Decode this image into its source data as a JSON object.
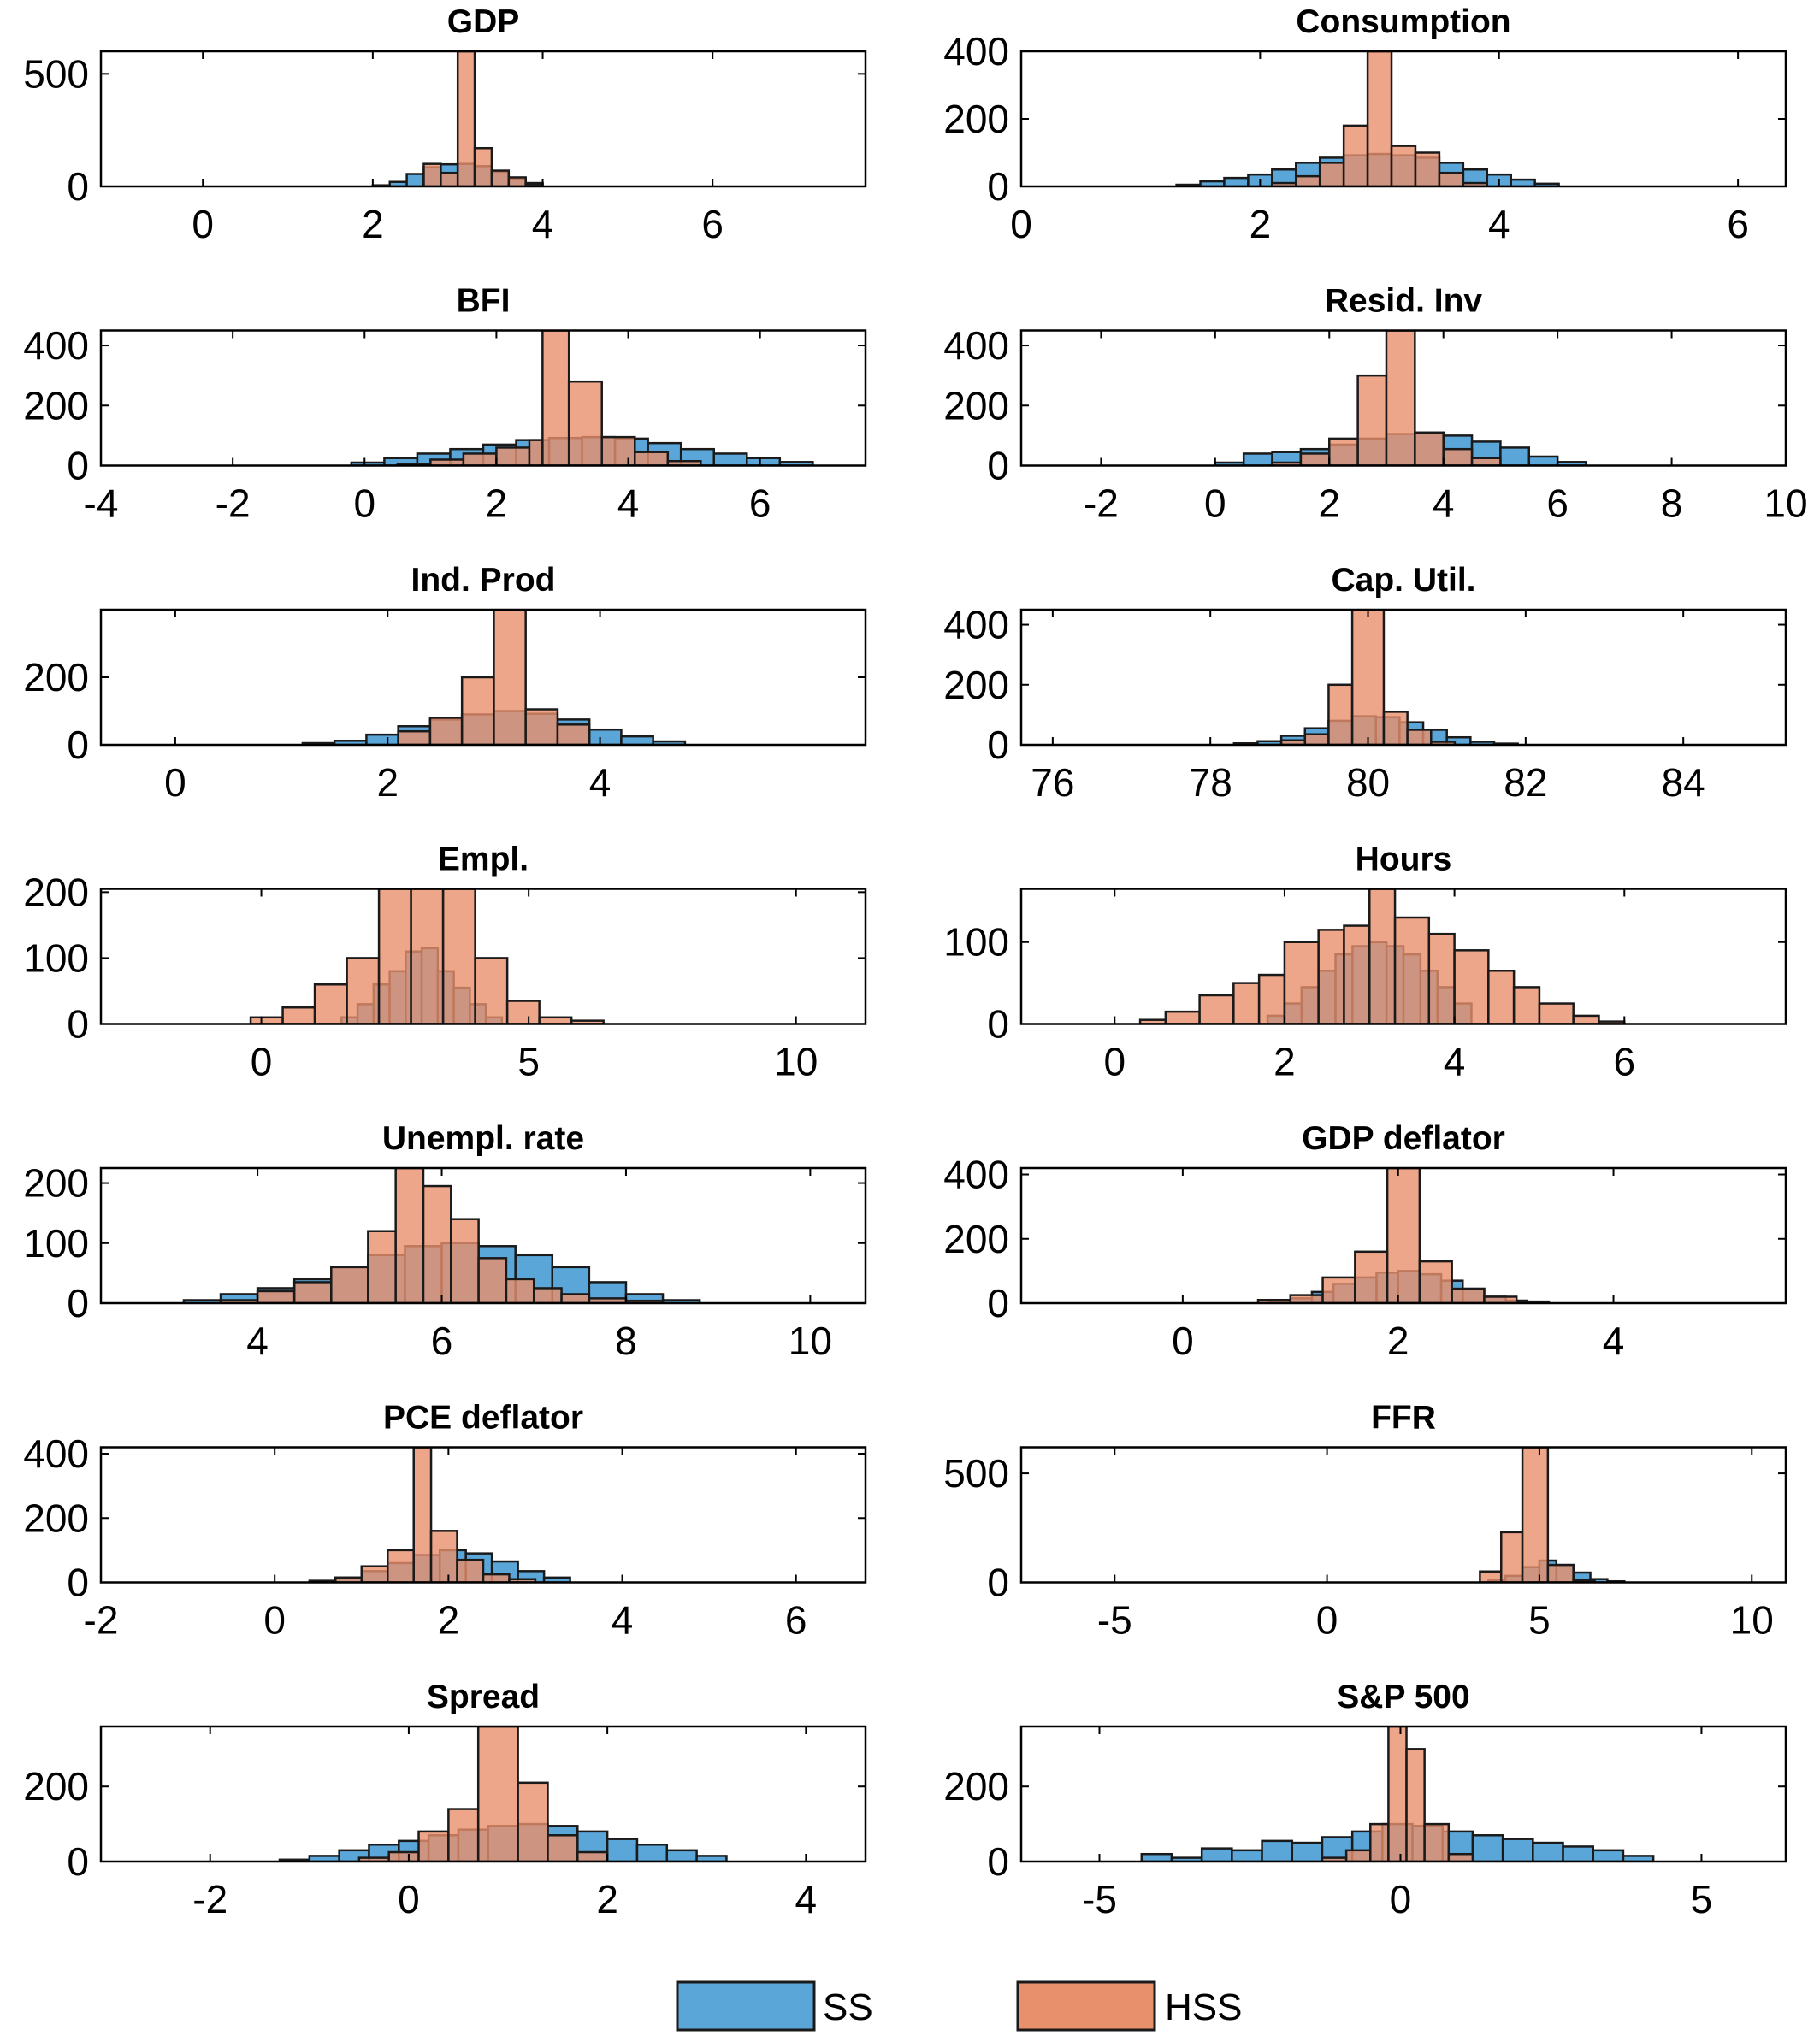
{
  "colors": {
    "ss": "#5aa6d8",
    "hss": "#e8906c",
    "edge": "#1a1a1a",
    "frame": "#000000"
  },
  "legend": {
    "items": [
      {
        "key": "ss",
        "label": "SS"
      },
      {
        "key": "hss",
        "label": "HSS"
      }
    ]
  },
  "chart_data": [
    {
      "type": "bar",
      "title": "GDP",
      "xlim": [
        -1.2,
        7.8
      ],
      "ylim": [
        0,
        600
      ],
      "xticks": [
        0,
        2,
        4,
        6
      ],
      "yticks": [
        0,
        500
      ],
      "xticklabels": [
        "0",
        "2",
        "4",
        "6"
      ],
      "yticklabels": [
        "0",
        "500"
      ],
      "ss": {
        "edges": [
          2.0,
          2.2,
          2.4,
          2.6,
          2.8,
          3.0,
          3.2,
          3.4,
          3.6,
          3.8,
          4.0
        ],
        "counts": [
          5,
          20,
          55,
          85,
          98,
          100,
          90,
          65,
          35,
          15
        ]
      },
      "hss": {
        "edges": [
          2.6,
          2.8,
          3.0,
          3.2,
          3.4,
          3.6,
          3.8,
          4.0
        ],
        "counts": [
          100,
          60,
          600,
          170,
          70,
          40,
          10
        ]
      }
    },
    {
      "type": "bar",
      "title": "Consumption",
      "xlim": [
        0,
        6.4
      ],
      "ylim": [
        0,
        400
      ],
      "xticks": [
        0,
        2,
        4,
        6
      ],
      "yticks": [
        0,
        200,
        400
      ],
      "xticklabels": [
        "0",
        "2",
        "4",
        "6"
      ],
      "yticklabels": [
        "0",
        "200",
        "400"
      ],
      "ss": {
        "edges": [
          1.3,
          1.5,
          1.7,
          1.9,
          2.1,
          2.3,
          2.5,
          2.7,
          2.9,
          3.1,
          3.3,
          3.5,
          3.7,
          3.9,
          4.1,
          4.3,
          4.5
        ],
        "counts": [
          5,
          15,
          25,
          35,
          50,
          70,
          85,
          92,
          96,
          92,
          85,
          70,
          50,
          35,
          20,
          8
        ]
      },
      "hss": {
        "edges": [
          2.1,
          2.3,
          2.5,
          2.7,
          2.9,
          3.1,
          3.3,
          3.5,
          3.7,
          3.9
        ],
        "counts": [
          10,
          30,
          70,
          180,
          400,
          120,
          100,
          40,
          10
        ]
      }
    },
    {
      "type": "bar",
      "title": "BFI",
      "xlim": [
        -4,
        7.6
      ],
      "ylim": [
        0,
        450
      ],
      "xticks": [
        -4,
        -2,
        0,
        2,
        4,
        6
      ],
      "yticks": [
        0,
        200,
        400
      ],
      "xticklabels": [
        "-4",
        "-2",
        "0",
        "2",
        "4",
        "6"
      ],
      "yticklabels": [
        "0",
        "200",
        "400"
      ],
      "ss": {
        "edges": [
          -0.2,
          0.3,
          0.8,
          1.3,
          1.8,
          2.3,
          2.8,
          3.3,
          3.8,
          4.3,
          4.8,
          5.3,
          5.8,
          6.3,
          6.8
        ],
        "counts": [
          10,
          25,
          40,
          55,
          70,
          85,
          92,
          95,
          90,
          75,
          55,
          40,
          25,
          12
        ]
      },
      "hss": {
        "edges": [
          0.5,
          1.0,
          1.5,
          2.0,
          2.5,
          2.7,
          3.1,
          3.6,
          4.1,
          4.6,
          5.1
        ],
        "counts": [
          5,
          20,
          40,
          60,
          85,
          450,
          280,
          95,
          45,
          15
        ]
      }
    },
    {
      "type": "bar",
      "title": "Resid. Inv",
      "xlim": [
        -3.4,
        10
      ],
      "ylim": [
        0,
        450
      ],
      "xticks": [
        -2,
        0,
        2,
        4,
        6,
        8,
        10
      ],
      "yticks": [
        0,
        200,
        400
      ],
      "xticklabels": [
        "-2",
        "0",
        "2",
        "4",
        "6",
        "8",
        "10"
      ],
      "yticklabels": [
        "0",
        "200",
        "400"
      ],
      "ss": {
        "edges": [
          0,
          0.5,
          1,
          1.5,
          2,
          2.5,
          3,
          3.5,
          4,
          4.5,
          5,
          5.5,
          6,
          6.5
        ],
        "counts": [
          10,
          40,
          45,
          55,
          70,
          90,
          105,
          110,
          100,
          80,
          60,
          30,
          12
        ]
      },
      "hss": {
        "edges": [
          1,
          1.5,
          2,
          2.5,
          3,
          3.5,
          4,
          4.5,
          5
        ],
        "counts": [
          10,
          40,
          90,
          300,
          450,
          110,
          55,
          25
        ]
      }
    },
    {
      "type": "bar",
      "title": "Ind. Prod",
      "xlim": [
        -0.7,
        6.5
      ],
      "ylim": [
        0,
        400
      ],
      "xticks": [
        0,
        2,
        4
      ],
      "yticks": [
        0,
        200
      ],
      "xticklabels": [
        "0",
        "2",
        "4"
      ],
      "yticklabels": [
        "0",
        "200"
      ],
      "ss": {
        "edges": [
          1.2,
          1.5,
          1.8,
          2.1,
          2.4,
          2.7,
          3.0,
          3.3,
          3.6,
          3.9,
          4.2,
          4.5,
          4.8
        ],
        "counts": [
          5,
          12,
          30,
          55,
          75,
          90,
          100,
          92,
          75,
          45,
          25,
          10
        ]
      },
      "hss": {
        "edges": [
          2.1,
          2.4,
          2.7,
          3.0,
          3.3,
          3.6,
          3.9
        ],
        "counts": [
          40,
          80,
          200,
          400,
          105,
          60,
          25
        ]
      }
    },
    {
      "type": "bar",
      "title": "Cap. Util.",
      "xlim": [
        75.6,
        85.3
      ],
      "ylim": [
        0,
        450
      ],
      "xticks": [
        76,
        78,
        80,
        82,
        84
      ],
      "yticks": [
        0,
        200,
        400
      ],
      "xticklabels": [
        "76",
        "78",
        "80",
        "82",
        "84"
      ],
      "yticklabels": [
        "0",
        "200",
        "400"
      ],
      "ss": {
        "edges": [
          78.3,
          78.6,
          78.9,
          79.2,
          79.5,
          79.8,
          80.1,
          80.4,
          80.7,
          81.0,
          81.3,
          81.6,
          81.9
        ],
        "counts": [
          5,
          12,
          30,
          55,
          80,
          95,
          92,
          75,
          50,
          25,
          10,
          4
        ]
      },
      "hss": {
        "edges": [
          78.9,
          79.2,
          79.5,
          79.8,
          80.2,
          80.5,
          80.8,
          81.1
        ],
        "counts": [
          15,
          35,
          200,
          450,
          110,
          50,
          10
        ]
      }
    },
    {
      "type": "bar",
      "title": "Empl.",
      "xlim": [
        -3,
        11.3
      ],
      "ylim": [
        0,
        205
      ],
      "xticks": [
        0,
        5,
        10
      ],
      "yticks": [
        0,
        100,
        200
      ],
      "xticklabels": [
        "0",
        "5",
        "10"
      ],
      "yticklabels": [
        "0",
        "100",
        "200"
      ],
      "ss": {
        "edges": [
          1.5,
          1.8,
          2.1,
          2.4,
          2.7,
          3.0,
          3.3,
          3.6,
          3.9,
          4.2,
          4.5
        ],
        "counts": [
          10,
          30,
          60,
          80,
          110,
          115,
          80,
          55,
          30,
          10
        ]
      },
      "hss": {
        "edges": [
          -0.2,
          0.4,
          1.0,
          1.6,
          2.2,
          2.8,
          3.4,
          4.0,
          4.6,
          5.2,
          5.8,
          6.4
        ],
        "counts": [
          10,
          25,
          60,
          100,
          205,
          205,
          205,
          100,
          35,
          10,
          5
        ]
      }
    },
    {
      "type": "bar",
      "title": "Hours",
      "xlim": [
        -1.1,
        7.9
      ],
      "ylim": [
        0,
        165
      ],
      "xticks": [
        0,
        2,
        4,
        6
      ],
      "yticks": [
        0,
        100
      ],
      "xticklabels": [
        "0",
        "2",
        "4",
        "6"
      ],
      "yticklabels": [
        "0",
        "100"
      ],
      "ss": {
        "edges": [
          1.8,
          2.0,
          2.2,
          2.4,
          2.6,
          2.8,
          3.0,
          3.2,
          3.4,
          3.6,
          3.8,
          4.0,
          4.2
        ],
        "counts": [
          10,
          25,
          45,
          65,
          85,
          95,
          100,
          95,
          85,
          65,
          45,
          25
        ]
      },
      "hss": {
        "edges": [
          0.3,
          0.6,
          1.0,
          1.4,
          1.7,
          2.0,
          2.4,
          2.7,
          3.0,
          3.3,
          3.7,
          4.0,
          4.4,
          4.7,
          5.0,
          5.4,
          5.7,
          6.0
        ],
        "counts": [
          5,
          15,
          35,
          50,
          60,
          100,
          115,
          120,
          165,
          130,
          110,
          90,
          65,
          45,
          25,
          10,
          3
        ]
      }
    },
    {
      "type": "bar",
      "title": "Unempl. rate",
      "xlim": [
        2.3,
        10.6
      ],
      "ylim": [
        0,
        225
      ],
      "xticks": [
        4,
        6,
        8,
        10
      ],
      "yticks": [
        0,
        100,
        200
      ],
      "xticklabels": [
        "4",
        "6",
        "8",
        "10"
      ],
      "yticklabels": [
        "0",
        "100",
        "200"
      ],
      "ss": {
        "edges": [
          3.2,
          3.6,
          4.0,
          4.4,
          4.8,
          5.2,
          5.6,
          6.0,
          6.4,
          6.8,
          7.2,
          7.6,
          8.0,
          8.4,
          8.8
        ],
        "counts": [
          5,
          15,
          25,
          40,
          60,
          80,
          95,
          100,
          95,
          80,
          60,
          35,
          15,
          5
        ]
      },
      "hss": {
        "edges": [
          3.6,
          4.0,
          4.4,
          4.8,
          5.2,
          5.5,
          5.8,
          6.1,
          6.4,
          6.7,
          7.0,
          7.3,
          7.6,
          8.0,
          8.4
        ],
        "counts": [
          5,
          20,
          35,
          60,
          120,
          225,
          195,
          140,
          75,
          40,
          25,
          15,
          8,
          4
        ]
      }
    },
    {
      "type": "bar",
      "title": "GDP deflator",
      "xlim": [
        -1.5,
        5.6
      ],
      "ylim": [
        0,
        420
      ],
      "xticks": [
        0,
        2,
        4
      ],
      "yticks": [
        0,
        200,
        400
      ],
      "xticklabels": [
        "0",
        "2",
        "4"
      ],
      "yticklabels": [
        "0",
        "200",
        "400"
      ],
      "ss": {
        "edges": [
          0.8,
          1.0,
          1.2,
          1.4,
          1.6,
          1.8,
          2.0,
          2.2,
          2.4,
          2.6,
          2.8,
          3.0,
          3.2
        ],
        "counts": [
          5,
          15,
          35,
          60,
          80,
          95,
          100,
          90,
          70,
          45,
          20,
          8
        ]
      },
      "hss": {
        "edges": [
          0.7,
          1.0,
          1.3,
          1.6,
          1.9,
          2.2,
          2.5,
          2.8,
          3.1,
          3.4
        ],
        "counts": [
          10,
          25,
          80,
          160,
          420,
          130,
          45,
          20,
          5
        ]
      }
    },
    {
      "type": "bar",
      "title": "PCE deflator",
      "xlim": [
        -2,
        6.8
      ],
      "ylim": [
        0,
        420
      ],
      "xticks": [
        -2,
        0,
        2,
        4,
        6
      ],
      "yticks": [
        0,
        200,
        400
      ],
      "xticklabels": [
        "-2",
        "0",
        "2",
        "4",
        "6"
      ],
      "yticklabels": [
        "0",
        "200",
        "400"
      ],
      "ss": {
        "edges": [
          0.4,
          0.7,
          1.0,
          1.3,
          1.6,
          1.9,
          2.2,
          2.5,
          2.8,
          3.1,
          3.4
        ],
        "counts": [
          5,
          15,
          35,
          60,
          85,
          100,
          90,
          65,
          35,
          15
        ]
      },
      "hss": {
        "edges": [
          0.7,
          1.0,
          1.3,
          1.6,
          1.8,
          2.1,
          2.4,
          2.7,
          3.0
        ],
        "counts": [
          15,
          50,
          100,
          420,
          160,
          70,
          25,
          10
        ]
      }
    },
    {
      "type": "bar",
      "title": "FFR",
      "xlim": [
        -7.2,
        10.8
      ],
      "ylim": [
        0,
        620
      ],
      "xticks": [
        -5,
        0,
        5,
        10
      ],
      "yticks": [
        0,
        500
      ],
      "xticklabels": [
        "-5",
        "0",
        "5",
        "10"
      ],
      "yticklabels": [
        "0",
        "500"
      ],
      "ss": {
        "edges": [
          3.8,
          4.2,
          4.6,
          5.0,
          5.4,
          5.8,
          6.2,
          6.6,
          7.0
        ],
        "counts": [
          10,
          30,
          70,
          100,
          80,
          45,
          15,
          5
        ]
      },
      "hss": {
        "edges": [
          3.6,
          4.1,
          4.6,
          5.2,
          5.8,
          6.3
        ],
        "counts": [
          50,
          230,
          620,
          80,
          10
        ]
      }
    },
    {
      "type": "bar",
      "title": "Spread",
      "xlim": [
        -3.1,
        4.6
      ],
      "ylim": [
        0,
        360
      ],
      "xticks": [
        -2,
        0,
        2,
        4
      ],
      "yticks": [
        0,
        200
      ],
      "xticklabels": [
        "-2",
        "0",
        "2",
        "4"
      ],
      "yticklabels": [
        "0",
        "200"
      ],
      "ss": {
        "edges": [
          -1.3,
          -1.0,
          -0.7,
          -0.4,
          -0.1,
          0.2,
          0.5,
          0.8,
          1.1,
          1.4,
          1.7,
          2.0,
          2.3,
          2.6,
          2.9,
          3.2
        ],
        "counts": [
          5,
          15,
          30,
          45,
          55,
          70,
          85,
          95,
          100,
          95,
          80,
          60,
          45,
          30,
          15
        ]
      },
      "hss": {
        "edges": [
          -0.5,
          -0.2,
          0.1,
          0.4,
          0.7,
          1.1,
          1.4,
          1.7,
          2.0
        ],
        "counts": [
          10,
          25,
          80,
          140,
          360,
          210,
          70,
          25
        ]
      }
    },
    {
      "type": "bar",
      "title": "S&P 500",
      "xlim": [
        -6.3,
        6.4
      ],
      "ylim": [
        0,
        360
      ],
      "xticks": [
        -5,
        0,
        5
      ],
      "yticks": [
        0,
        200
      ],
      "xticklabels": [
        "-5",
        "0",
        "5"
      ],
      "yticklabels": [
        "0",
        "200"
      ],
      "ss": {
        "edges": [
          -4.3,
          -3.8,
          -3.3,
          -2.8,
          -2.3,
          -1.8,
          -1.3,
          -0.8,
          -0.3,
          0.2,
          0.7,
          1.2,
          1.7,
          2.2,
          2.7,
          3.2,
          3.7,
          4.2
        ],
        "counts": [
          20,
          10,
          35,
          30,
          55,
          50,
          65,
          80,
          100,
          95,
          80,
          70,
          60,
          50,
          40,
          30,
          15
        ]
      },
      "hss": {
        "edges": [
          -1.3,
          -0.9,
          -0.5,
          -0.2,
          0.1,
          0.4,
          0.8,
          1.2
        ],
        "counts": [
          10,
          30,
          100,
          360,
          300,
          100,
          20
        ]
      }
    }
  ]
}
